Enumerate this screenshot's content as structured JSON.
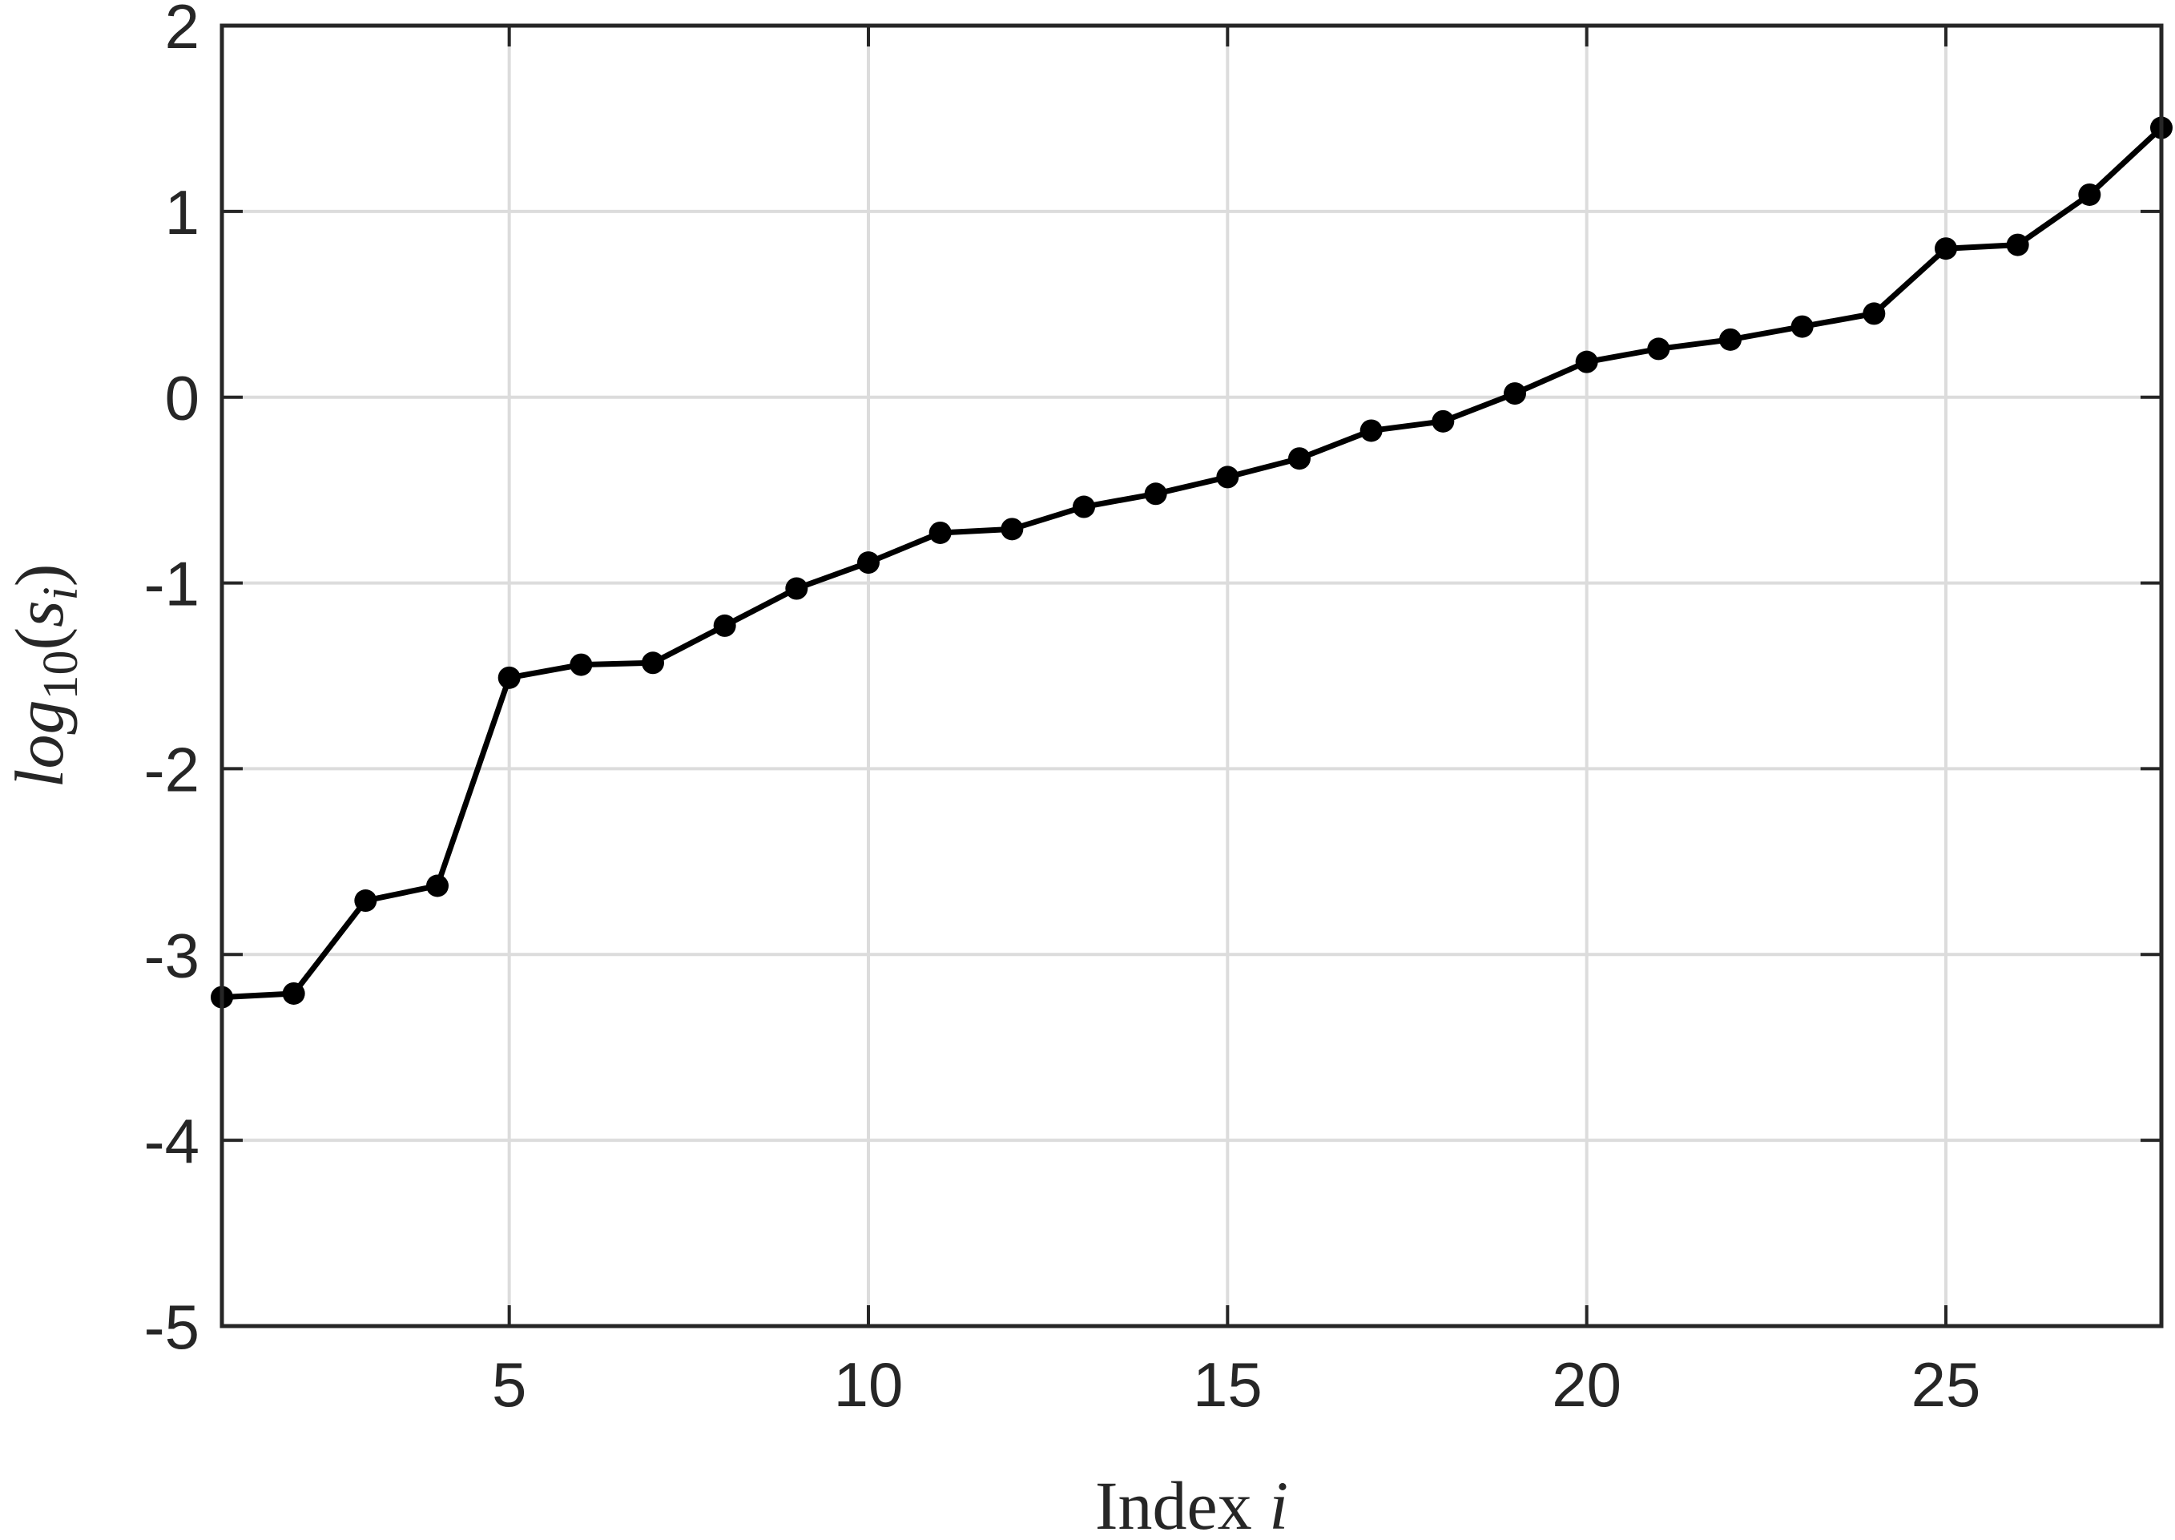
{
  "chart_data": {
    "type": "line",
    "title": "",
    "xlabel": {
      "text": "Index ",
      "var": "i"
    },
    "ylabel": {
      "fn": "log",
      "sub": "10",
      "arg": "s",
      "argsub": "i"
    },
    "xlim": [
      1,
      28
    ],
    "ylim": [
      -5,
      2
    ],
    "xticks": [
      5,
      10,
      15,
      20,
      25
    ],
    "yticks": [
      -5,
      -4,
      -3,
      -2,
      -1,
      0,
      1,
      2
    ],
    "xtick_labels": [
      "5",
      "10",
      "15",
      "20",
      "25"
    ],
    "ytick_labels": [
      "-5",
      "-4",
      "-3",
      "-2",
      "-1",
      "0",
      "1",
      "2"
    ],
    "grid": true,
    "line_color": "#000000",
    "grid_color": "#dcdcdc",
    "axis_color": "#262626",
    "series": [
      {
        "x": [
          1,
          2,
          3,
          4,
          5,
          6,
          7,
          8,
          9,
          10,
          11,
          12,
          13,
          14,
          15,
          16,
          17,
          18,
          19,
          20,
          21,
          22,
          23,
          24,
          25,
          26,
          27,
          28
        ],
        "values": [
          -3.23,
          -3.21,
          -2.71,
          -2.63,
          -1.51,
          -1.44,
          -1.43,
          -1.23,
          -1.03,
          -0.89,
          -0.73,
          -0.71,
          -0.59,
          -0.52,
          -0.43,
          -0.33,
          -0.18,
          -0.13,
          0.02,
          0.19,
          0.26,
          0.31,
          0.38,
          0.45,
          0.8,
          0.82,
          1.09,
          1.45
        ]
      }
    ]
  }
}
